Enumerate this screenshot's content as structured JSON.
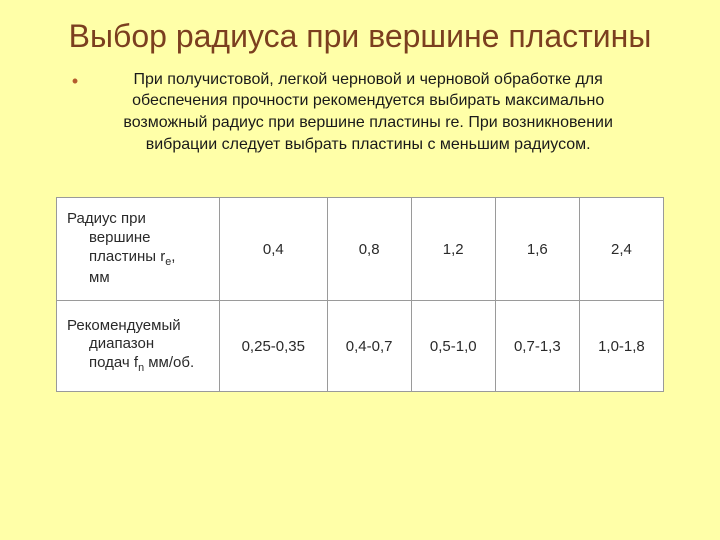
{
  "title": "Выбор радиуса при вершине пластины",
  "bullet": "При получистовой, легкой черновой и черновой обработке для обеспечения прочности рекомендуется выбирать максимально возможный радиус при вершине пластины re. При возникновении вибрации следует выбрать пластины с меньшим радиусом.",
  "table": {
    "type": "table",
    "background_color": "#ffffff",
    "border_color": "#9a9a9a",
    "text_color": "#2a2a2a",
    "font_size": 15,
    "row1": {
      "label_l1": "Радиус при",
      "label_l2": "вершине",
      "label_l3": "пластины r",
      "label_sub": "е",
      "label_l3_tail": ",",
      "label_l4": "мм",
      "c1": "0,4",
      "c2": "0,8",
      "c3": "1,2",
      "c4": "1,6",
      "c5": "2,4"
    },
    "row2": {
      "label_l1": "Рекомендуемый",
      "label_l2": "диапазон",
      "label_l3": "подач f",
      "label_sub": "n",
      "label_l3_tail": " мм/об.",
      "c1": "0,25-0,35",
      "c2": "0,4-0,7",
      "c3": "0,5-1,0",
      "c4": "0,7-1,3",
      "c5": "1,0-1,8"
    }
  },
  "colors": {
    "background": "#ffffa8",
    "title": "#7b3f1f",
    "bullet_marker": "#b45c2e",
    "body_text": "#1a1a1a"
  }
}
